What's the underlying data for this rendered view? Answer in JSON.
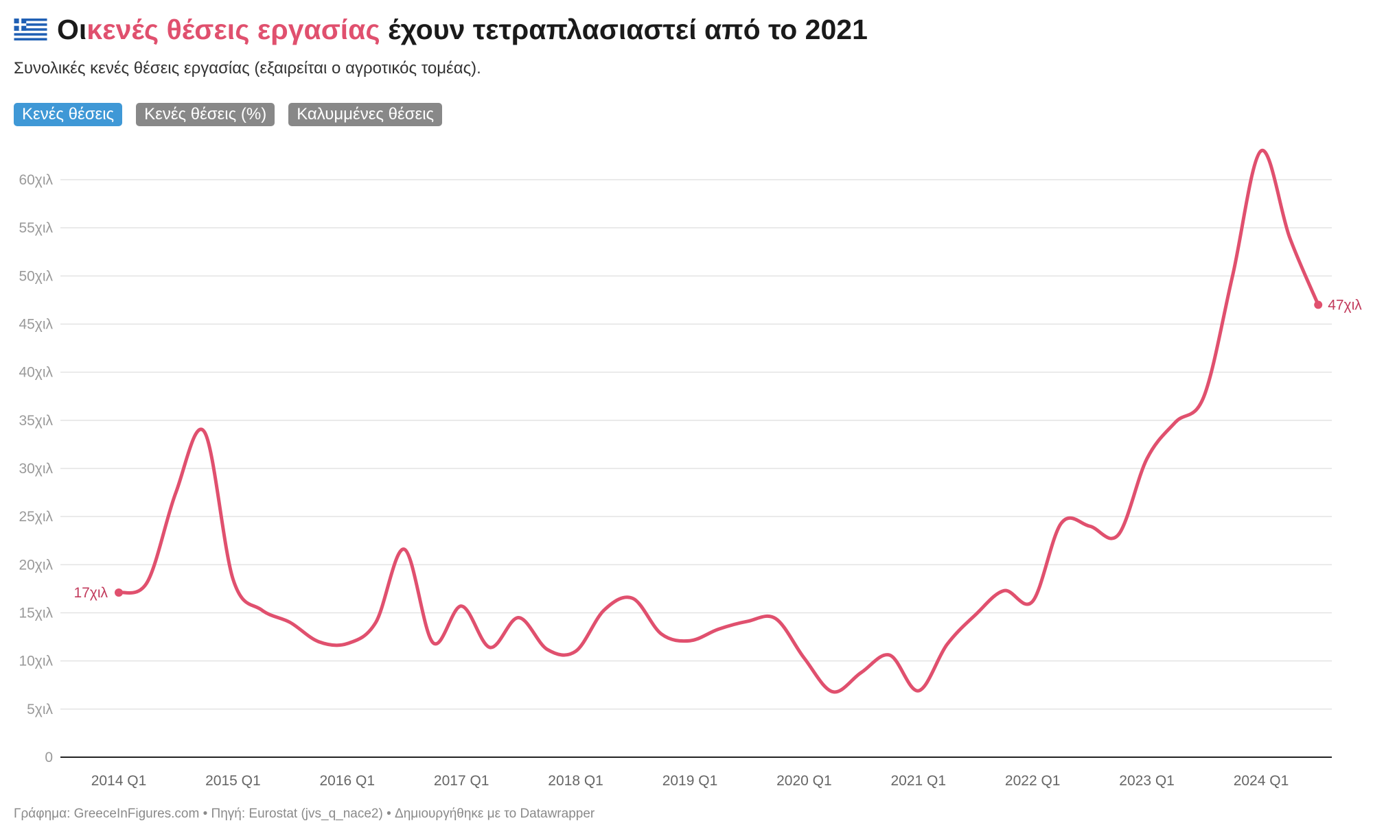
{
  "header": {
    "title_prefix": "Οι ",
    "title_highlight": "κενές θέσεις εργασίας",
    "title_suffix": " έχουν τετραπλασιαστεί από το 2021",
    "subtitle": "Συνολικές κενές θέσεις εργασίας (εξαιρείται ο αγροτικός τομέας)."
  },
  "tabs": [
    {
      "label": "Κενές θέσεις",
      "active": true
    },
    {
      "label": "Κενές θέσεις (%)",
      "active": false
    },
    {
      "label": "Καλυμμένες θέσεις",
      "active": false
    }
  ],
  "footer": {
    "text": "Γράφημα: GreeceInFigures.com • Πηγή: Eurostat (jvs_q_nace2) • Δημιουργήθηκε με το Datawrapper"
  },
  "colors": {
    "line": "#e0506e",
    "highlight": "#e0506e",
    "active_tab": "#3f98d6",
    "inactive_tab": "#888888"
  },
  "chart_data": {
    "type": "line",
    "ylim": [
      0,
      63000
    ],
    "grid": true,
    "yticks": [
      {
        "value": 0,
        "label": "0"
      },
      {
        "value": 5000,
        "label": "5χιλ"
      },
      {
        "value": 10000,
        "label": "10χιλ"
      },
      {
        "value": 15000,
        "label": "15χιλ"
      },
      {
        "value": 20000,
        "label": "20χιλ"
      },
      {
        "value": 25000,
        "label": "25χιλ"
      },
      {
        "value": 30000,
        "label": "30χιλ"
      },
      {
        "value": 35000,
        "label": "35χιλ"
      },
      {
        "value": 40000,
        "label": "40χιλ"
      },
      {
        "value": 45000,
        "label": "45χιλ"
      },
      {
        "value": 50000,
        "label": "50χιλ"
      },
      {
        "value": 55000,
        "label": "55χιλ"
      },
      {
        "value": 60000,
        "label": "60χιλ"
      }
    ],
    "xticks": [
      "2014 Q1",
      "2015 Q1",
      "2016 Q1",
      "2017 Q1",
      "2018 Q1",
      "2019 Q1",
      "2020 Q1",
      "2021 Q1",
      "2022 Q1",
      "2023 Q1",
      "2024 Q1"
    ],
    "x": [
      "2014 Q1",
      "2014 Q2",
      "2014 Q3",
      "2014 Q4",
      "2015 Q1",
      "2015 Q2",
      "2015 Q3",
      "2015 Q4",
      "2016 Q1",
      "2016 Q2",
      "2016 Q3",
      "2016 Q4",
      "2017 Q1",
      "2017 Q2",
      "2017 Q3",
      "2017 Q4",
      "2018 Q1",
      "2018 Q2",
      "2018 Q3",
      "2018 Q4",
      "2019 Q1",
      "2019 Q2",
      "2019 Q3",
      "2019 Q4",
      "2020 Q1",
      "2020 Q2",
      "2020 Q3",
      "2020 Q4",
      "2021 Q1",
      "2021 Q2",
      "2021 Q3",
      "2021 Q4",
      "2022 Q1",
      "2022 Q2",
      "2022 Q3",
      "2022 Q4",
      "2023 Q1",
      "2023 Q2",
      "2023 Q3",
      "2023 Q4",
      "2024 Q1",
      "2024 Q2",
      "2024 Q3"
    ],
    "series": [
      {
        "values": [
          17100,
          18200,
          27500,
          33800,
          18500,
          15300,
          14000,
          12000,
          11800,
          14000,
          21600,
          11900,
          15700,
          11400,
          14500,
          11200,
          11000,
          15300,
          16500,
          12800,
          12100,
          13300,
          14100,
          14400,
          10300,
          6800,
          8800,
          10600,
          6900,
          11700,
          14800,
          17300,
          16200,
          24300,
          24000,
          23100,
          31000,
          34800,
          37500,
          50000,
          63000,
          54000,
          47000
        ]
      }
    ],
    "annotations": [
      {
        "label": "17χιλ",
        "index": 0,
        "side": "left"
      },
      {
        "label": "47χιλ",
        "index": 42,
        "side": "right"
      }
    ]
  }
}
